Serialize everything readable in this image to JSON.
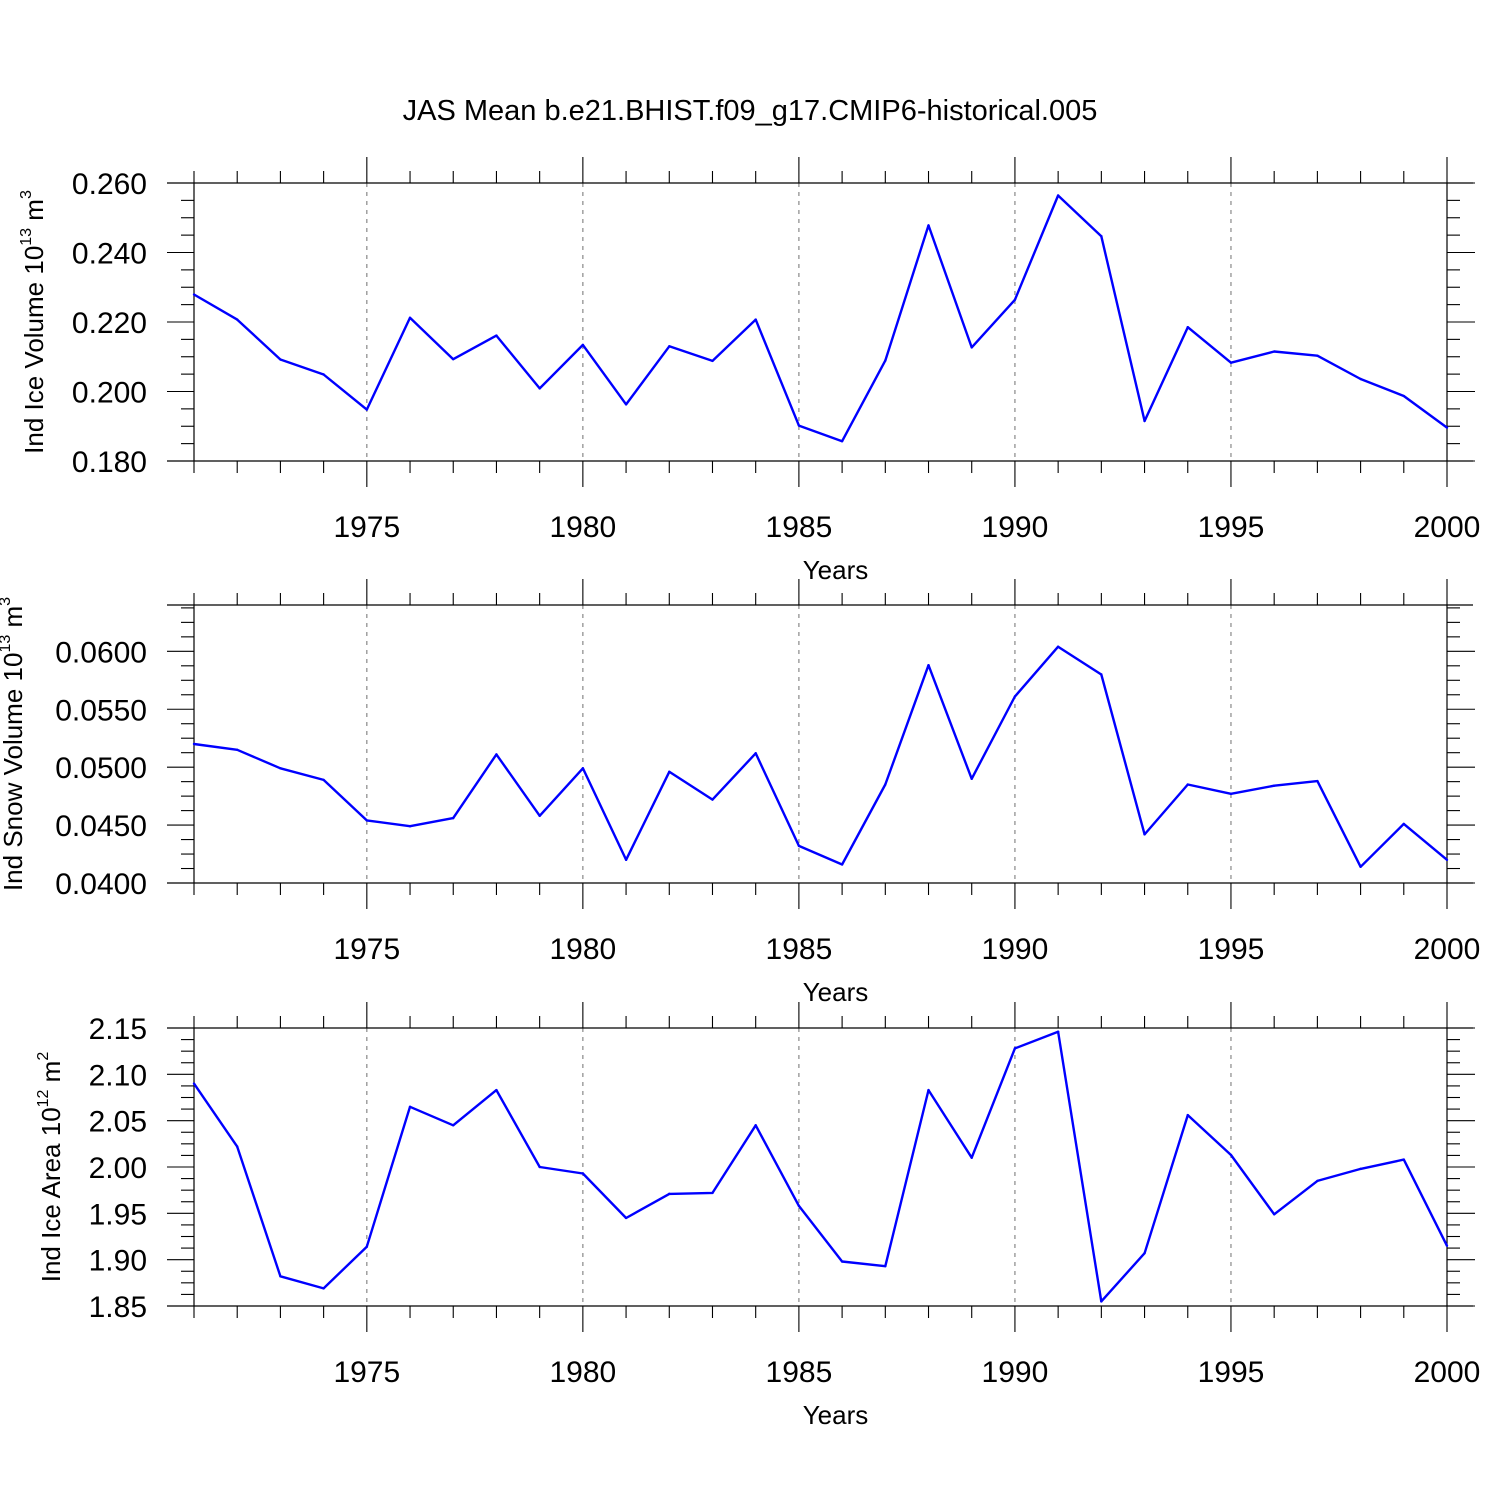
{
  "title": "JAS Mean b.e21.BHIST.f09_g17.CMIP6-historical.005",
  "colors": {
    "line": "#0000ff",
    "axis": "#000000",
    "grid": "#888888"
  },
  "chart_data": [
    {
      "type": "line",
      "ylabel": {
        "main": "Ind Ice Volume 10",
        "sup": "13",
        "unit": " m",
        "unit_sup": "3"
      },
      "xlabel": "Years",
      "xlim": [
        1971,
        2000
      ],
      "ylim": [
        0.18,
        0.26
      ],
      "xticks": [
        1975,
        1980,
        1985,
        1990,
        1995,
        2000
      ],
      "xtick_labels": [
        "1975",
        "1980",
        "1985",
        "1990",
        "1995",
        "2000"
      ],
      "yticks": [
        0.18,
        0.2,
        0.22,
        0.24,
        0.26
      ],
      "ytick_labels": [
        "0.180",
        "0.200",
        "0.220",
        "0.240",
        "0.260"
      ],
      "grid": "vertical-dashed",
      "x": [
        1971,
        1972,
        1973,
        1974,
        1975,
        1976,
        1977,
        1978,
        1979,
        1980,
        1981,
        1982,
        1983,
        1984,
        1985,
        1986,
        1987,
        1988,
        1989,
        1990,
        1991,
        1992,
        1993,
        1994,
        1995,
        1996,
        1997,
        1998,
        1999,
        2000
      ],
      "y": [
        0.2279,
        0.2207,
        0.2092,
        0.2049,
        0.1948,
        0.2212,
        0.2093,
        0.2161,
        0.2009,
        0.2134,
        0.1963,
        0.213,
        0.2088,
        0.2207,
        0.1902,
        0.1857,
        0.2089,
        0.2478,
        0.2127,
        0.2264,
        0.2564,
        0.2447,
        0.1915,
        0.2185,
        0.2083,
        0.2115,
        0.2103,
        0.2036,
        0.1987,
        0.1896
      ]
    },
    {
      "type": "line",
      "ylabel": {
        "main": "Ind Snow Volume 10",
        "sup": "13",
        "unit": " m",
        "unit_sup": "3"
      },
      "xlabel": "Years",
      "xlim": [
        1971,
        2000
      ],
      "ylim": [
        0.04,
        0.064
      ],
      "xticks": [
        1975,
        1980,
        1985,
        1990,
        1995,
        2000
      ],
      "xtick_labels": [
        "1975",
        "1980",
        "1985",
        "1990",
        "1995",
        "2000"
      ],
      "yticks": [
        0.04,
        0.045,
        0.05,
        0.055,
        0.06
      ],
      "ytick_labels": [
        "0.0400",
        "0.0450",
        "0.0500",
        "0.0550",
        "0.0600"
      ],
      "grid": "vertical-dashed",
      "x": [
        1971,
        1972,
        1973,
        1974,
        1975,
        1976,
        1977,
        1978,
        1979,
        1980,
        1981,
        1982,
        1983,
        1984,
        1985,
        1986,
        1987,
        1988,
        1989,
        1990,
        1991,
        1992,
        1993,
        1994,
        1995,
        1996,
        1997,
        1998,
        1999,
        2000
      ],
      "y": [
        0.052,
        0.0515,
        0.0499,
        0.0489,
        0.0454,
        0.0449,
        0.0456,
        0.0511,
        0.0458,
        0.0499,
        0.042,
        0.0496,
        0.0472,
        0.0512,
        0.0432,
        0.0416,
        0.0485,
        0.0588,
        0.049,
        0.0561,
        0.0604,
        0.058,
        0.0442,
        0.0485,
        0.0477,
        0.0484,
        0.0488,
        0.0414,
        0.0451,
        0.042
      ]
    },
    {
      "type": "line",
      "ylabel": {
        "main": "Ind Ice Area 10",
        "sup": "12",
        "unit": " m",
        "unit_sup": "2"
      },
      "xlabel": "Years",
      "xlim": [
        1971,
        2000
      ],
      "ylim": [
        1.85,
        2.15
      ],
      "xticks": [
        1975,
        1980,
        1985,
        1990,
        1995,
        2000
      ],
      "xtick_labels": [
        "1975",
        "1980",
        "1985",
        "1990",
        "1995",
        "2000"
      ],
      "yticks": [
        1.85,
        1.9,
        1.95,
        2.0,
        2.05,
        2.1,
        2.15
      ],
      "ytick_labels": [
        "1.85",
        "1.90",
        "1.95",
        "2.00",
        "2.05",
        "2.10",
        "2.15"
      ],
      "grid": "vertical-dashed",
      "x": [
        1971,
        1972,
        1973,
        1974,
        1975,
        1976,
        1977,
        1978,
        1979,
        1980,
        1981,
        1982,
        1983,
        1984,
        1985,
        1986,
        1987,
        1988,
        1989,
        1990,
        1991,
        1992,
        1993,
        1994,
        1995,
        1996,
        1997,
        1998,
        1999,
        2000
      ],
      "y": [
        2.09,
        2.022,
        1.882,
        1.869,
        1.914,
        2.065,
        2.045,
        2.083,
        2.0,
        1.993,
        1.945,
        1.971,
        1.972,
        2.045,
        1.958,
        1.898,
        1.893,
        2.083,
        2.01,
        2.128,
        2.146,
        1.855,
        1.907,
        2.056,
        2.013,
        1.949,
        1.985,
        1.998,
        2.008,
        1.915
      ]
    }
  ]
}
